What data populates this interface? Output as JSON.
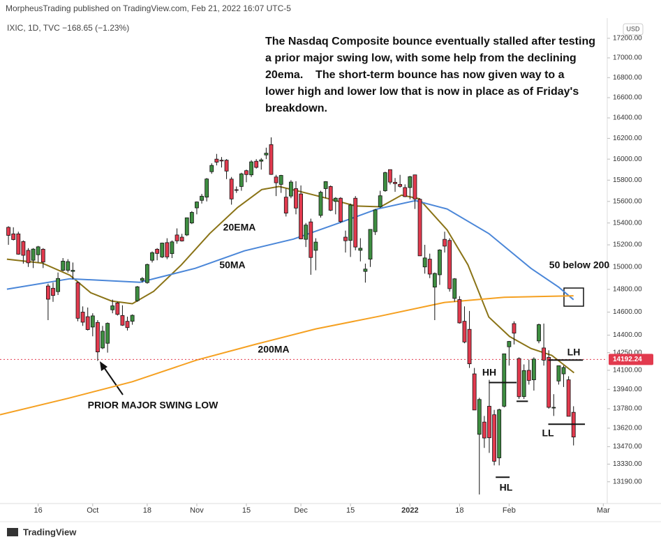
{
  "header": "MorpheusTrading published on TradingView.com, Feb 21, 2022 16:07 UTC-5",
  "legend": "IXIC, 1D, TVC  −168.65 (−1.23%)",
  "currency": "USD",
  "footer": "TradingView",
  "chart_data": {
    "type": "candlestick",
    "log_scale": true,
    "grid": false,
    "up_color": "#3e8e41",
    "down_color": "#e23a4e",
    "xlim": [
      -1.7,
      120.8
    ],
    "xticks": [
      {
        "value": 6,
        "label": "16"
      },
      {
        "value": 17,
        "label": "Oct"
      },
      {
        "value": 28,
        "label": "18"
      },
      {
        "value": 38,
        "label": "Nov"
      },
      {
        "value": 48,
        "label": "15"
      },
      {
        "value": 59,
        "label": "Dec"
      },
      {
        "value": 69,
        "label": "15"
      },
      {
        "value": 81,
        "label": "2022"
      },
      {
        "value": 91,
        "label": "18"
      },
      {
        "value": 101,
        "label": "Feb"
      },
      {
        "value": 120,
        "label": "Mar"
      }
    ],
    "ylim": [
      13030,
      17380
    ],
    "yticks": [
      {
        "value": 17200,
        "label": "17200.00"
      },
      {
        "value": 17000,
        "label": "17000.00"
      },
      {
        "value": 16800,
        "label": "16800.00"
      },
      {
        "value": 16600,
        "label": "16600.00"
      },
      {
        "value": 16400,
        "label": "16400.00"
      },
      {
        "value": 16200,
        "label": "16200.00"
      },
      {
        "value": 16000,
        "label": "16000.00"
      },
      {
        "value": 15800,
        "label": "15800.00"
      },
      {
        "value": 15600,
        "label": "15600.00"
      },
      {
        "value": 15400,
        "label": "15400.00"
      },
      {
        "value": 15200,
        "label": "15200.00"
      },
      {
        "value": 15000,
        "label": "15000.00"
      },
      {
        "value": 14800,
        "label": "14800.00"
      },
      {
        "value": 14600,
        "label": "14600.00"
      },
      {
        "value": 14400,
        "label": "14400.00"
      },
      {
        "value": 14250,
        "label": "14250.00"
      },
      {
        "value": 14100,
        "label": "14100.00"
      },
      {
        "value": 13940,
        "label": "13940.00"
      },
      {
        "value": 13780,
        "label": "13780.00"
      },
      {
        "value": 13620,
        "label": "13620.00"
      },
      {
        "value": 13470,
        "label": "13470.00"
      },
      {
        "value": 13330,
        "label": "13330.00"
      },
      {
        "value": 13190,
        "label": "13190.00"
      }
    ],
    "price_line": 14192.24,
    "candles": {
      "open": [
        15360,
        15300,
        15300,
        15230,
        15150,
        15060,
        15110,
        15160,
        14830,
        14810,
        14780,
        14970,
        14970,
        14960,
        14860,
        14600,
        14560,
        14470,
        14510,
        14290,
        14330,
        14620,
        14680,
        14570,
        14520,
        14520,
        14700,
        14880,
        14860,
        15060,
        15160,
        15090,
        15220,
        15120,
        15290,
        15270,
        15290,
        15400,
        15540,
        15610,
        15640,
        15880,
        16000,
        15990,
        15990,
        15810,
        15710,
        15740,
        15890,
        15850,
        15980,
        15980,
        16040,
        16140,
        15830,
        15760,
        15640,
        15650,
        15720,
        15670,
        15250,
        15410,
        15150,
        15470,
        15720,
        15740,
        15600,
        15630,
        15270,
        15240,
        15630,
        15150,
        14960,
        15070,
        15320,
        15550,
        15700,
        15900,
        15780,
        15760,
        15730,
        15730,
        15850,
        15620,
        15000,
        15070,
        14820,
        14930,
        15250,
        15240,
        14720,
        14710,
        14520,
        14450,
        14070,
        13570,
        13670,
        13800,
        13730,
        13380,
        13800,
        14300,
        14500,
        14200,
        13880,
        14100,
        14020,
        14350,
        14290,
        14210,
        13790,
        14010,
        14070,
        14020,
        13750
      ],
      "high": [
        15370,
        15360,
        15320,
        15240,
        15170,
        15170,
        15190,
        15170,
        14850,
        14860,
        14950,
        15080,
        15070,
        15040,
        14870,
        14650,
        14640,
        14590,
        14530,
        14480,
        14510,
        14710,
        14690,
        14660,
        14560,
        14580,
        14830,
        14910,
        15030,
        15140,
        15170,
        15220,
        15260,
        15240,
        15350,
        15300,
        15450,
        15510,
        15600,
        15670,
        15820,
        15960,
        16050,
        16020,
        16000,
        15830,
        15740,
        15870,
        15900,
        15990,
        16000,
        16010,
        16110,
        16210,
        15850,
        15850,
        15720,
        15800,
        15790,
        15750,
        15400,
        15440,
        15260,
        15700,
        15790,
        15750,
        15640,
        15640,
        15330,
        15580,
        15650,
        15260,
        15030,
        15340,
        15530,
        15700,
        15880,
        15900,
        15820,
        15850,
        15760,
        15840,
        15850,
        15630,
        15200,
        15120,
        14950,
        15160,
        15320,
        15260,
        14900,
        14740,
        14650,
        14610,
        14120,
        13870,
        13720,
        14020,
        13770,
        13780,
        14240,
        14350,
        14520,
        14210,
        14150,
        14190,
        14210,
        14500,
        14500,
        14270,
        13900,
        14140,
        14140,
        14050,
        13800
      ],
      "low": [
        15200,
        15240,
        15110,
        15030,
        15000,
        14990,
        15040,
        14990,
        14530,
        14690,
        14750,
        14960,
        14950,
        14890,
        14520,
        14480,
        14440,
        14390,
        14180,
        14280,
        14250,
        14590,
        14570,
        14480,
        14440,
        14490,
        14690,
        14860,
        14850,
        15040,
        15060,
        15080,
        15070,
        15080,
        15210,
        15230,
        15280,
        15390,
        15480,
        15580,
        15600,
        15860,
        15940,
        15920,
        15810,
        15570,
        15680,
        15700,
        15780,
        15830,
        15910,
        15900,
        16000,
        15850,
        15650,
        15680,
        15460,
        15630,
        15480,
        15250,
        15180,
        14930,
        14970,
        15450,
        15630,
        15510,
        15480,
        15400,
        15130,
        15090,
        15150,
        15050,
        14860,
        15000,
        15290,
        15540,
        15690,
        15760,
        15690,
        15730,
        15640,
        15620,
        15530,
        15100,
        14940,
        14900,
        14530,
        14840,
        15130,
        14780,
        14690,
        14500,
        14330,
        14120,
        13770,
        13090,
        13460,
        13420,
        13320,
        13320,
        13790,
        14140,
        14320,
        13860,
        13860,
        13980,
        13930,
        14330,
        14140,
        13780,
        13720,
        13980,
        13960,
        13720,
        13480
      ],
      "close": [
        15286,
        15248,
        15115,
        15105,
        15037,
        15161,
        15182,
        15044,
        14713,
        14746,
        14897,
        15052,
        15048,
        14970,
        14546,
        14512,
        14448,
        14567,
        14256,
        14434,
        14502,
        14655,
        14580,
        14486,
        14465,
        14572,
        14823,
        14897,
        15022,
        15129,
        15122,
        15216,
        15090,
        15227,
        15236,
        15235,
        15448,
        15498,
        15595,
        15649,
        15811,
        15940,
        15971,
        15982,
        15886,
        15623,
        15704,
        15860,
        15853,
        15974,
        15921,
        15993,
        16057,
        15854,
        15775,
        15845,
        15491,
        15782,
        15538,
        15254,
        15381,
        15085,
        15225,
        15686,
        15786,
        15518,
        15630,
        15413,
        15237,
        15566,
        15180,
        15169,
        14981,
        15341,
        15521,
        15653,
        15871,
        15781,
        15767,
        15741,
        15645,
        15833,
        15622,
        15100,
        15081,
        14936,
        14942,
        15153,
        15188,
        14806,
        14894,
        14506,
        14341,
        14155,
        13769,
        13856,
        13540,
        13542,
        13353,
        13771,
        14240,
        14346,
        14417,
        13879,
        14098,
        14015,
        14195,
        14491,
        14186,
        13791,
        13791,
        14139,
        14124,
        13717,
        13548
      ]
    },
    "series": [
      {
        "name": "20EMA",
        "color": "#8a7316",
        "x": [
          -0.3,
          6.8,
          12.4,
          16.6,
          20.8,
          25,
          29.3,
          34.9,
          40.6,
          46.2,
          51.1,
          54.6,
          58.9,
          64.5,
          70.1,
          75.1,
          79.3,
          82.8,
          88.5,
          92.7,
          96.9,
          101.1,
          105.4,
          109.6,
          114.1
        ],
        "values": [
          15070,
          15035,
          14926,
          14770,
          14697,
          14673,
          14783,
          15019,
          15303,
          15542,
          15711,
          15740,
          15692,
          15626,
          15557,
          15550,
          15659,
          15626,
          15336,
          15019,
          14557,
          14388,
          14286,
          14227,
          14079
        ]
      },
      {
        "name": "50MA",
        "color": "#4a86d8",
        "x": [
          -0.3,
          12.4,
          26.5,
          37.7,
          47.6,
          57.5,
          65.9,
          74.4,
          82.1,
          88.5,
          96.9,
          105.4,
          111,
          114
        ],
        "values": [
          14802,
          14894,
          14863,
          14988,
          15145,
          15252,
          15387,
          15529,
          15607,
          15529,
          15303,
          14988,
          14820,
          14709
        ]
      },
      {
        "name": "200MA",
        "color": "#f5a020",
        "x": [
          -1.7,
          12,
          25,
          38,
          50,
          62,
          75,
          88,
          100,
          114
        ],
        "values": [
          13730,
          13865,
          14004,
          14187,
          14323,
          14454,
          14565,
          14685,
          14730,
          14743
        ]
      }
    ],
    "levels": [
      {
        "x": [
          96.9,
          102.5
        ],
        "value": 13997
      },
      {
        "x": [
          98.3,
          101.1
        ],
        "value": 13226
      },
      {
        "x": [
          102.5,
          104.8
        ],
        "value": 13841
      },
      {
        "x": [
          108.9,
          115.9
        ],
        "value": 14187
      },
      {
        "x": [
          108.9,
          116.3
        ],
        "value": 13652
      }
    ],
    "commentary": [
      "The Nasdaq Composite bounce eventually stalled after testing",
      "a prior major swing low, with some help from the declining",
      "20ema.    The short-term bounce has now given way to a",
      "lower high and lower low that is now in place as of Friday's",
      "breakdown."
    ],
    "annotations": [
      "PRIOR MAJOR SWING LOW",
      "50 below 200",
      "HH",
      "HL",
      "LH",
      "LL"
    ]
  }
}
